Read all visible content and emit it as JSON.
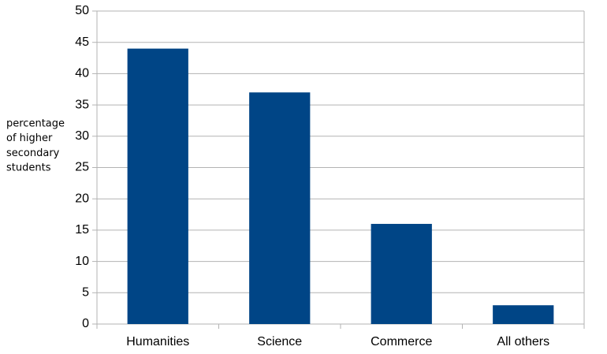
{
  "chart_data": {
    "type": "bar",
    "y_label": [
      "percentage",
      "of higher",
      "secondary",
      "students"
    ],
    "categories": [
      "Humanities",
      "Science",
      "Commerce",
      "All others"
    ],
    "values": [
      44,
      37,
      16,
      3
    ],
    "color": "#004586",
    "ylim": [
      0,
      50
    ],
    "yticks": [
      0,
      5,
      10,
      15,
      20,
      25,
      30,
      35,
      40,
      45,
      50
    ],
    "grid": true
  }
}
